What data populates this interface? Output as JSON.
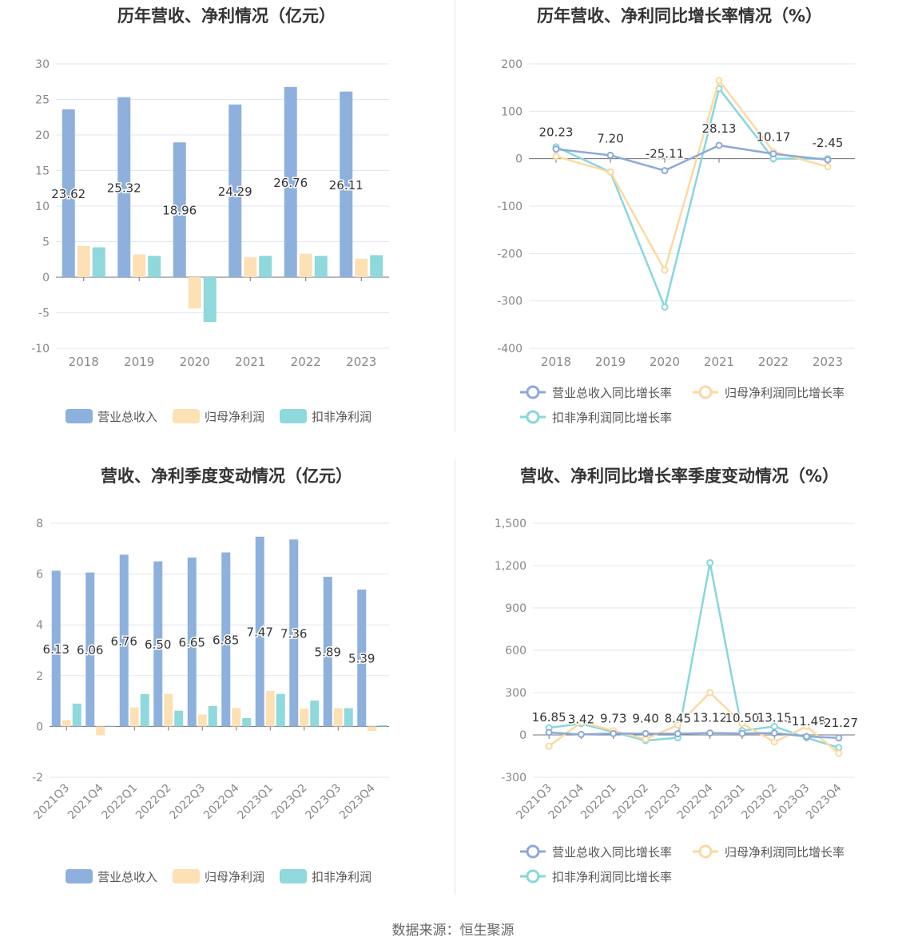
{
  "footer": {
    "source": "数据来源：恒生聚源"
  },
  "colors": {
    "revenue": "#8eb0dd",
    "net_profit": "#fde0b3",
    "deducted_profit": "#8fd8dc",
    "revenue_line": "#8da9d8",
    "net_line": "#fdd9a0",
    "deducted_line": "#87d7dc"
  },
  "legends": {
    "bar": [
      "营业总收入",
      "归母净利润",
      "扣非净利润"
    ],
    "line": [
      "营业总收入同比增长率",
      "归母净利润同比增长率",
      "扣非净利润同比增长率"
    ]
  },
  "chart_data": [
    {
      "type": "bar",
      "title": "历年营收、净利情况（亿元）",
      "categories": [
        "2018",
        "2019",
        "2020",
        "2021",
        "2022",
        "2023"
      ],
      "series": [
        {
          "name": "营业总收入",
          "values": [
            23.62,
            25.32,
            18.96,
            24.29,
            26.76,
            26.11
          ]
        },
        {
          "name": "归母净利润",
          "values": [
            4.4,
            3.2,
            -4.4,
            2.8,
            3.3,
            2.6
          ]
        },
        {
          "name": "扣非净利润",
          "values": [
            4.2,
            3.0,
            -6.3,
            3.0,
            3.0,
            3.1
          ]
        }
      ],
      "data_labels": [
        "23.62",
        "25.32",
        "18.96",
        "24.29",
        "26.76",
        "26.11"
      ],
      "yticks": [
        "30",
        "25",
        "20",
        "15",
        "10",
        "5",
        "0",
        "-5",
        "-10"
      ],
      "ylim": [
        -10,
        30
      ],
      "grid": true,
      "legend": "bottom"
    },
    {
      "type": "line",
      "title": "历年营收、净利同比增长率情况（%）",
      "categories": [
        "2018",
        "2019",
        "2020",
        "2021",
        "2022",
        "2023"
      ],
      "series": [
        {
          "name": "营业总收入同比增长率",
          "values": [
            20.23,
            7.2,
            -25.11,
            28.13,
            10.17,
            -2.45
          ]
        },
        {
          "name": "归母净利润同比增长率",
          "values": [
            5,
            -28,
            -235,
            165,
            15,
            -17
          ]
        },
        {
          "name": "扣非净利润同比增长率",
          "values": [
            25,
            -28,
            -313,
            148,
            0,
            0
          ]
        }
      ],
      "data_labels": [
        "20.23",
        "7.20",
        "-25.11",
        "28.13",
        "10.17",
        "-2.45"
      ],
      "yticks": [
        "200",
        "100",
        "0",
        "-100",
        "-200",
        "-300",
        "-400"
      ],
      "ylim": [
        -400,
        200
      ],
      "grid": true,
      "legend": "bottom"
    },
    {
      "type": "bar",
      "title": "营收、净利季度变动情况（亿元）",
      "categories": [
        "2021Q3",
        "2021Q4",
        "2022Q1",
        "2022Q2",
        "2022Q3",
        "2022Q4",
        "2023Q1",
        "2023Q2",
        "2023Q3",
        "2023Q4"
      ],
      "series": [
        {
          "name": "营业总收入",
          "values": [
            6.13,
            6.06,
            6.76,
            6.5,
            6.65,
            6.85,
            7.47,
            7.36,
            5.89,
            5.39
          ]
        },
        {
          "name": "归母净利润",
          "values": [
            0.25,
            -0.35,
            0.75,
            1.28,
            0.47,
            0.73,
            1.4,
            0.7,
            0.72,
            -0.18
          ]
        },
        {
          "name": "扣非净利润",
          "values": [
            0.9,
            0.03,
            1.27,
            0.62,
            0.8,
            0.33,
            1.28,
            1.02,
            0.72,
            0.05
          ]
        }
      ],
      "data_labels": [
        "6.13",
        "6.06",
        "6.76",
        "6.50",
        "6.65",
        "6.85",
        "7.47",
        "7.36",
        "5.89",
        "5.39"
      ],
      "yticks": [
        "8",
        "6",
        "4",
        "2",
        "0",
        "-2"
      ],
      "ylim": [
        -2,
        8
      ],
      "grid": true,
      "legend": "bottom"
    },
    {
      "type": "line",
      "title": "营收、净利同比增长率季度变动情况（%）",
      "categories": [
        "2021Q3",
        "2021Q4",
        "2022Q1",
        "2022Q2",
        "2022Q3",
        "2022Q4",
        "2023Q1",
        "2023Q2",
        "2023Q3",
        "2023Q4"
      ],
      "series": [
        {
          "name": "营业总收入同比增长率",
          "values": [
            16.85,
            3.42,
            9.73,
            9.4,
            8.45,
            13.12,
            10.5,
            13.15,
            -11.48,
            -21.27
          ]
        },
        {
          "name": "归母净利润同比增长率",
          "values": [
            -80,
            90,
            30,
            -30,
            70,
            300,
            80,
            -50,
            60,
            -130
          ]
        },
        {
          "name": "扣非净利润同比增长率",
          "values": [
            50,
            80,
            20,
            -40,
            -20,
            1220,
            30,
            60,
            -20,
            -90
          ]
        }
      ],
      "data_labels": [
        "16.85",
        "3.42",
        "9.73",
        "9.40",
        "8.45",
        "13.12",
        "10.50",
        "13.15",
        "-11.48",
        "-21.27"
      ],
      "yticks": [
        "1,500",
        "1,200",
        "900",
        "600",
        "300",
        "0",
        "-300"
      ],
      "ylim": [
        -300,
        1500
      ],
      "grid": true,
      "legend": "bottom"
    }
  ]
}
